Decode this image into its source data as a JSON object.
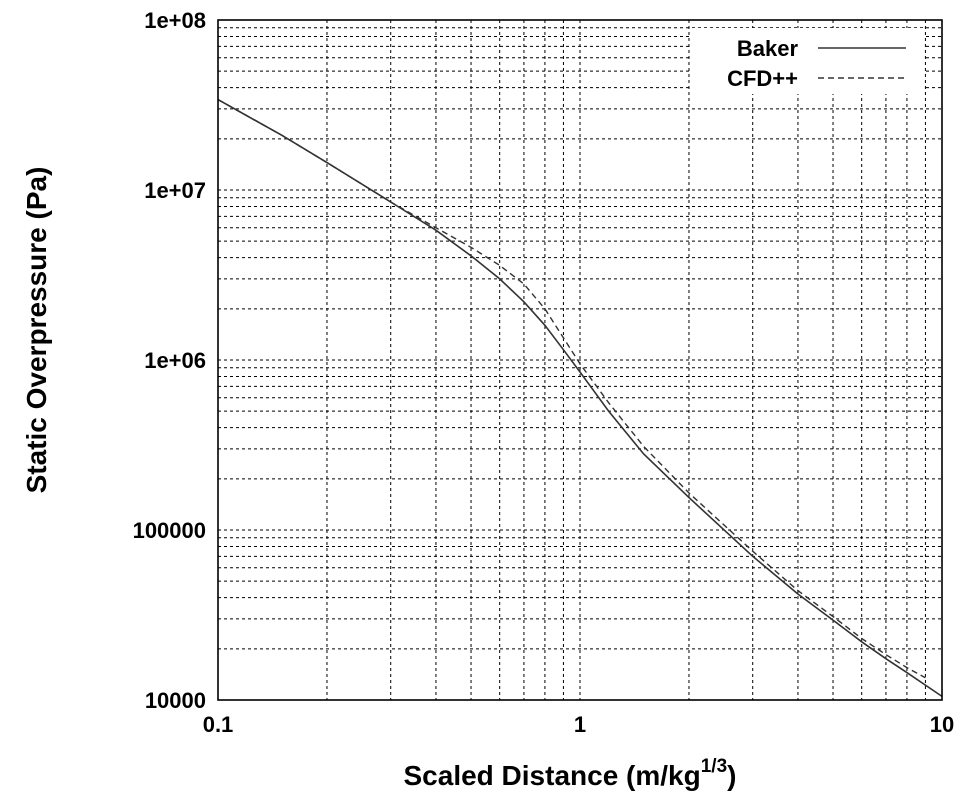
{
  "chart_data": {
    "type": "line",
    "xlabel": "Scaled Distance (m/kg",
    "xlabel_sup": "1/3",
    "xlabel_end": ")",
    "ylabel": "Static Overpressure (Pa)",
    "x_scale": "log",
    "y_scale": "log",
    "xlim": [
      0.1,
      10
    ],
    "ylim": [
      10000,
      100000000
    ],
    "x_ticks": [
      0.1,
      1,
      10
    ],
    "x_tick_labels": [
      "0.1",
      "1",
      "10"
    ],
    "y_ticks": [
      10000,
      100000,
      1000000,
      10000000,
      100000000
    ],
    "y_tick_labels": [
      "10000",
      "100000",
      "1e+06",
      "1e+07",
      "1e+08"
    ],
    "grid": true,
    "legend_position": "top-right",
    "series": [
      {
        "name": "Baker",
        "style": "solid",
        "x": [
          0.1,
          0.15,
          0.2,
          0.3,
          0.4,
          0.5,
          0.6,
          0.7,
          0.8,
          0.9,
          1.0,
          1.2,
          1.5,
          2.0,
          3.0,
          4.0,
          5.0,
          6.0,
          7.0,
          8.0,
          10.0
        ],
        "y": [
          34000000,
          21000000,
          14500000,
          8500000,
          5800000,
          4100000,
          3000000,
          2200000,
          1600000,
          1150000,
          850000,
          500000,
          280000,
          155000,
          70000,
          42000,
          29500,
          22000,
          17500,
          14500,
          10500
        ]
      },
      {
        "name": "CFD++",
        "style": "dashed",
        "x": [
          0.1,
          0.15,
          0.2,
          0.3,
          0.4,
          0.5,
          0.6,
          0.7,
          0.8,
          0.9,
          1.0,
          1.2,
          1.5,
          2.0,
          3.0,
          4.0,
          5.0,
          6.0,
          7.0,
          8.0,
          9.0
        ],
        "y": [
          34000000,
          21000000,
          14500000,
          8500000,
          6000000,
          4600000,
          3600000,
          2800000,
          2000000,
          1350000,
          950000,
          560000,
          310000,
          165000,
          75000,
          44000,
          31000,
          23000,
          18500,
          15500,
          13500
        ]
      }
    ]
  }
}
